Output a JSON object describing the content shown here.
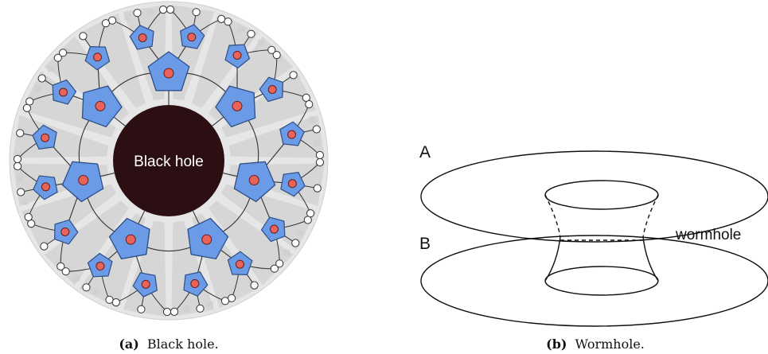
{
  "figure_a": {
    "center_label": "Black hole",
    "caption_tag": "(a)",
    "caption_text": "Black hole.",
    "colors": {
      "pentagon_fill": "#6b9ae6",
      "pentagon_stroke": "#2c4f86",
      "node_fill": "#e8645a",
      "black_hole": "#2b0f12",
      "disk_gray": "#dcdcdc",
      "tile_gray": "#c8c8c8"
    }
  },
  "figure_b": {
    "label_a": "A",
    "label_b": "B",
    "label_wormhole": "wormhole",
    "caption_tag": "(b)",
    "caption_text": "Wormhole."
  }
}
